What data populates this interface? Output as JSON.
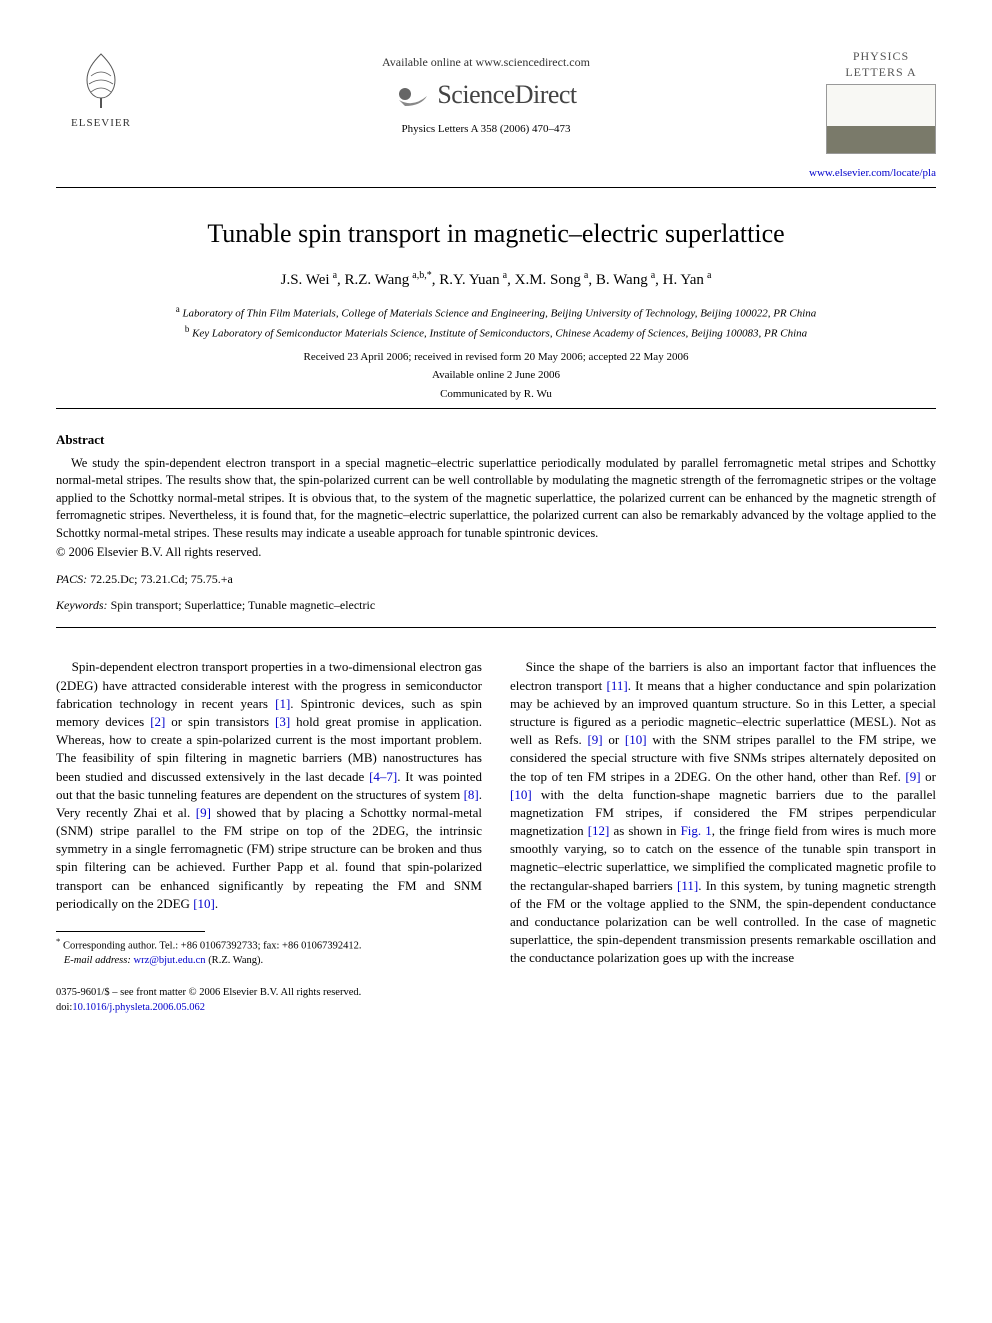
{
  "header": {
    "publisher_label": "ELSEVIER",
    "available_text": "Available online at www.sciencedirect.com",
    "platform_name": "ScienceDirect",
    "citation": "Physics Letters A 358 (2006) 470–473",
    "journal_cover_label": "PHYSICS LETTERS A",
    "journal_url_text": "www.elsevier.com/locate/pla",
    "journal_url_href": "http://www.elsevier.com/locate/pla"
  },
  "article": {
    "title": "Tunable spin transport in magnetic–electric superlattice",
    "authors_html": "J.S. Wei <sup>a</sup>, R.Z. Wang <sup>a,b,*</sup>, R.Y. Yuan <sup>a</sup>, X.M. Song <sup>a</sup>, B. Wang <sup>a</sup>, H. Yan <sup>a</sup>",
    "affiliations": [
      {
        "marker": "a",
        "text": "Laboratory of Thin Film Materials, College of Materials Science and Engineering, Beijing University of Technology, Beijing 100022, PR China"
      },
      {
        "marker": "b",
        "text": "Key Laboratory of Semiconductor Materials Science, Institute of Semiconductors, Chinese Academy of Sciences, Beijing 100083, PR China"
      }
    ],
    "received": "Received 23 April 2006; received in revised form 20 May 2006; accepted 22 May 2006",
    "online": "Available online 2 June 2006",
    "communicated": "Communicated by R. Wu"
  },
  "abstract": {
    "heading": "Abstract",
    "text": "We study the spin-dependent electron transport in a special magnetic–electric superlattice periodically modulated by parallel ferromagnetic metal stripes and Schottky normal-metal stripes. The results show that, the spin-polarized current can be well controllable by modulating the magnetic strength of the ferromagnetic stripes or the voltage applied to the Schottky normal-metal stripes. It is obvious that, to the system of the magnetic superlattice, the polarized current can be enhanced by the magnetic strength of ferromagnetic stripes. Nevertheless, it is found that, for the magnetic–electric superlattice, the polarized current can also be remarkably advanced by the voltage applied to the Schottky normal-metal stripes. These results may indicate a useable approach for tunable spintronic devices.",
    "copyright": "© 2006 Elsevier B.V. All rights reserved."
  },
  "meta": {
    "pacs_label": "PACS:",
    "pacs": "72.25.Dc; 73.21.Cd; 75.75.+a",
    "keywords_label": "Keywords:",
    "keywords": "Spin transport; Superlattice; Tunable magnetic–electric"
  },
  "body": {
    "col1_p1": "Spin-dependent electron transport properties in a two-dimensional electron gas (2DEG) have attracted considerable interest with the progress in semiconductor fabrication technology in recent years [1]. Spintronic devices, such as spin memory devices [2] or spin transistors [3] hold great promise in application. Whereas, how to create a spin-polarized current is the most important problem. The feasibility of spin filtering in magnetic barriers (MB) nanostructures has been studied and discussed extensively in the last decade [4–7]. It was pointed out that the basic tunneling features are dependent on the structures of system [8]. Very recently Zhai et al. [9] showed that by placing a Schottky normal-metal (SNM) stripe parallel to the FM stripe on top of the 2DEG, the intrinsic symmetry in a single ferromagnetic (FM) stripe structure can be broken and thus spin filtering can be achieved. Further Papp et al. found that spin-polarized transport can be enhanced significantly by repeating the FM and SNM periodically on the 2DEG [10].",
    "col2_p1": "Since the shape of the barriers is also an important factor that influences the electron transport [11]. It means that a higher conductance and spin polarization may be achieved by an improved quantum structure. So in this Letter, a special structure is figured as a periodic magnetic–electric superlattice (MESL). Not as well as Refs. [9] or [10] with the SNM stripes parallel to the FM stripe, we considered the special structure with five SNMs stripes alternately deposited on the top of ten FM stripes in a 2DEG. On the other hand, other than Ref. [9] or [10] with the delta function-shape magnetic barriers due to the parallel magnetization FM stripes, if considered the FM stripes perpendicular magnetization [12] as shown in Fig. 1, the fringe field from wires is much more smoothly varying, so to catch on the essence of the tunable spin transport in magnetic–electric superlattice, we simplified the complicated magnetic profile to the rectangular-shaped barriers [11]. In this system, by tuning magnetic strength of the FM or the voltage applied to the SNM, the spin-dependent conductance and conductance polarization can be well controlled. In the case of magnetic superlattice, the spin-dependent transmission presents remarkable oscillation and the conductance polarization goes up with the increase",
    "refs_linked": [
      "[1]",
      "[2]",
      "[3]",
      "[4–7]",
      "[8]",
      "[9]",
      "[10]",
      "[11]",
      "[12]",
      "Fig. 1"
    ]
  },
  "footnote": {
    "corr_label": "*",
    "corr_text": "Corresponding author. Tel.: +86 01067392733; fax: +86 01067392412.",
    "email_label": "E-mail address:",
    "email": "wrz@bjut.edu.cn",
    "email_paren": "(R.Z. Wang)."
  },
  "footer": {
    "line1": "0375-9601/$ – see front matter © 2006 Elsevier B.V. All rights reserved.",
    "doi_label": "doi:",
    "doi": "10.1016/j.physleta.2006.05.062"
  },
  "colors": {
    "link": "#0000cc",
    "text": "#000000",
    "bg": "#ffffff"
  }
}
